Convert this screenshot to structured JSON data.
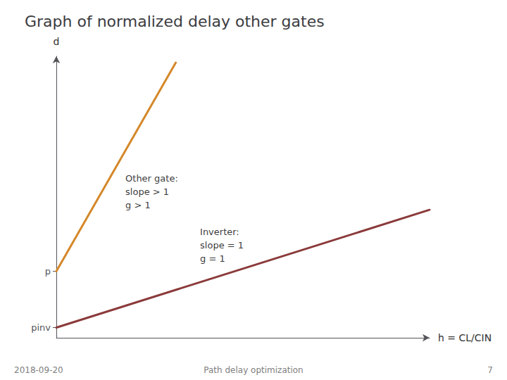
{
  "chart_data": {
    "type": "line",
    "title": "Graph of normalized delay other gates",
    "xlabel": "h = CL/CIN",
    "ylabel": "d",
    "series": [
      {
        "x": [
          0,
          10
        ],
        "values": [
          0.08,
          1.0
        ],
        "color": "#8B3A3A"
      },
      {
        "x": [
          0,
          3.2
        ],
        "values": [
          0.52,
          2.15
        ],
        "color": "#D4882A"
      }
    ],
    "xlim": [
      0,
      10
    ],
    "xticks": [],
    "ylim": [
      0,
      2.2
    ],
    "yticks": [
      {
        "value": 0.08,
        "label": "pinv"
      },
      {
        "value": 0.52,
        "label": "p"
      }
    ],
    "tick_labels": "y",
    "grid": false,
    "annotations": [
      {
        "text": "Other gate:\nslope > 1\ng > 1",
        "x": 1.85,
        "y": 1.3
      },
      {
        "text": "Inverter:\nslope = 1\ng = 1",
        "x": 3.85,
        "y": 0.88
      },
      {
        "text": "2018-09-20"
      },
      {
        "text": "Path delay optimization"
      },
      {
        "text": "7"
      }
    ]
  }
}
